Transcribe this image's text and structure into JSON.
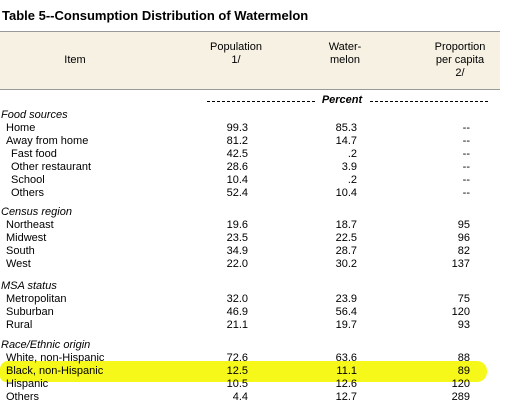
{
  "title": "Table 5--Consumption Distribution of Watermelon",
  "header": {
    "item": [
      "Item"
    ],
    "columns": [
      [
        "Population",
        "1/"
      ],
      [
        "Water-",
        "melon"
      ],
      [
        "Proportion",
        "per capita",
        "2/"
      ]
    ]
  },
  "unit": "Percent",
  "sections": [
    {
      "heading": "Food sources",
      "rows": [
        {
          "label": "Home",
          "cells": [
            "99.3",
            "85.3",
            "--"
          ]
        },
        {
          "label": "Away from home",
          "cells": [
            "81.2",
            "14.7",
            "--"
          ]
        },
        {
          "label": "Fast food",
          "sub": true,
          "cells": [
            "42.5",
            ".2",
            "--"
          ]
        },
        {
          "label": "Other restaurant",
          "sub": true,
          "cells": [
            "28.6",
            "3.9",
            "--"
          ]
        },
        {
          "label": "School",
          "sub": true,
          "cells": [
            "10.4",
            ".2",
            "--"
          ]
        },
        {
          "label": "Others",
          "sub": true,
          "cells": [
            "52.4",
            "10.4",
            "--"
          ]
        }
      ]
    },
    {
      "heading": "Census region",
      "rows": [
        {
          "label": "Northeast",
          "cells": [
            "19.6",
            "18.7",
            "95"
          ]
        },
        {
          "label": "Midwest",
          "cells": [
            "23.5",
            "22.5",
            "96"
          ]
        },
        {
          "label": "South",
          "cells": [
            "34.9",
            "28.7",
            "82"
          ]
        },
        {
          "label": "West",
          "cells": [
            "22.0",
            "30.2",
            "137"
          ]
        }
      ]
    },
    {
      "heading": "MSA status",
      "rows": [
        {
          "label": "Metropolitan",
          "cells": [
            "32.0",
            "23.9",
            "75"
          ]
        },
        {
          "label": "Suburban",
          "cells": [
            "46.9",
            "56.4",
            "120"
          ]
        },
        {
          "label": "Rural",
          "cells": [
            "21.1",
            "19.7",
            "93"
          ]
        }
      ]
    },
    {
      "heading": "Race/Ethnic origin",
      "rows": [
        {
          "label": "White, non-Hispanic",
          "cells": [
            "72.6",
            "63.6",
            "88"
          ]
        },
        {
          "label": "Black, non-Hispanic",
          "highlight": true,
          "cells": [
            "12.5",
            "11.1",
            "89"
          ]
        },
        {
          "label": "Hispanic",
          "cells": [
            "10.5",
            "12.6",
            "120"
          ]
        },
        {
          "label": "Others",
          "cells": [
            "4.4",
            "12.7",
            "289"
          ]
        }
      ]
    }
  ]
}
